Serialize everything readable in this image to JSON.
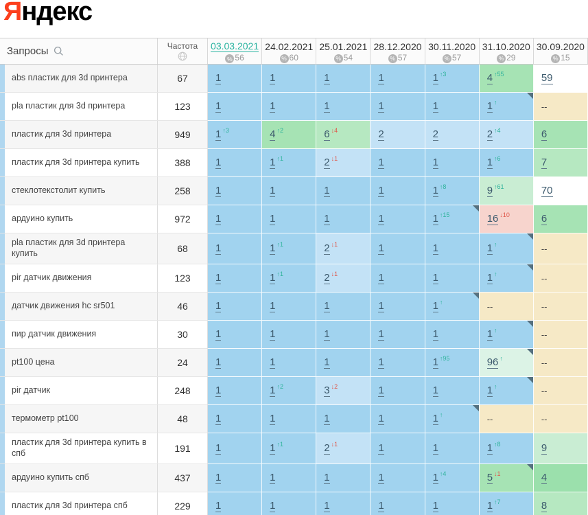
{
  "logo": {
    "first_letter": "Я",
    "rest": "ндекс"
  },
  "header": {
    "queries_label": "Запросы",
    "freq_label": "Частота",
    "columns": [
      {
        "date": "03.03.2021",
        "pct": "56",
        "active": true
      },
      {
        "date": "24.02.2021",
        "pct": "60",
        "active": false
      },
      {
        "date": "25.01.2021",
        "pct": "54",
        "active": false
      },
      {
        "date": "28.12.2020",
        "pct": "57",
        "active": false
      },
      {
        "date": "30.11.2020",
        "pct": "57",
        "active": false
      },
      {
        "date": "31.10.2020",
        "pct": "29",
        "active": false
      },
      {
        "date": "30.09.2020",
        "pct": "15",
        "active": false
      }
    ]
  },
  "colors": {
    "accent_teal": "#2ab3a0",
    "sup_up": "#2fb39b",
    "sup_down": "#e0594c",
    "logo_red": "#fc3f1d",
    "marker": "#55707f",
    "strip_blue": "#b0d7f0",
    "palette": {
      "b1": "#a1d3ef",
      "b2": "#c3e2f6",
      "g0": "#9be0ac",
      "g1": "#a6e3b4",
      "g2": "#b6e8c1",
      "g3": "#c9edd3",
      "g4": "#dcf3e6",
      "tan": "#f6e9c6",
      "pink": "#f7d4cd",
      "white": "#ffffff"
    }
  },
  "rows": [
    {
      "keyword": "abs пластик для 3d принтера",
      "freq": "67",
      "cells": [
        {
          "v": "1",
          "bg": "b1"
        },
        {
          "v": "1",
          "bg": "b1"
        },
        {
          "v": "1",
          "bg": "b1"
        },
        {
          "v": "1",
          "bg": "b1"
        },
        {
          "v": "1",
          "bg": "b1",
          "sup": "3",
          "dir": "up"
        },
        {
          "v": "4",
          "bg": "g1",
          "sup": "55",
          "dir": "up"
        },
        {
          "v": "59",
          "bg": "white"
        }
      ]
    },
    {
      "keyword": "pla пластик для 3d принтера",
      "freq": "123",
      "cells": [
        {
          "v": "1",
          "bg": "b1"
        },
        {
          "v": "1",
          "bg": "b1"
        },
        {
          "v": "1",
          "bg": "b1"
        },
        {
          "v": "1",
          "bg": "b1"
        },
        {
          "v": "1",
          "bg": "b1"
        },
        {
          "v": "1",
          "bg": "b1",
          "sup": "",
          "dir": "up",
          "marker": true
        },
        {
          "v": "--",
          "bg": "tan"
        }
      ]
    },
    {
      "keyword": "пластик для 3d принтера",
      "freq": "949",
      "cells": [
        {
          "v": "1",
          "bg": "b1",
          "sup": "3",
          "dir": "up"
        },
        {
          "v": "4",
          "bg": "g1",
          "sup": "2",
          "dir": "up"
        },
        {
          "v": "6",
          "bg": "g2",
          "sup": "4",
          "dir": "down"
        },
        {
          "v": "2",
          "bg": "b2"
        },
        {
          "v": "2",
          "bg": "b2"
        },
        {
          "v": "2",
          "bg": "b2",
          "sup": "4",
          "dir": "up"
        },
        {
          "v": "6",
          "bg": "g1"
        }
      ]
    },
    {
      "keyword": "пластик для 3d принтера купить",
      "freq": "388",
      "cells": [
        {
          "v": "1",
          "bg": "b1"
        },
        {
          "v": "1",
          "bg": "b1",
          "sup": "1",
          "dir": "up"
        },
        {
          "v": "2",
          "bg": "b2",
          "sup": "1",
          "dir": "down"
        },
        {
          "v": "1",
          "bg": "b1"
        },
        {
          "v": "1",
          "bg": "b1"
        },
        {
          "v": "1",
          "bg": "b1",
          "sup": "6",
          "dir": "up"
        },
        {
          "v": "7",
          "bg": "g2"
        }
      ]
    },
    {
      "keyword": "стеклотекстолит купить",
      "freq": "258",
      "cells": [
        {
          "v": "1",
          "bg": "b1"
        },
        {
          "v": "1",
          "bg": "b1"
        },
        {
          "v": "1",
          "bg": "b1"
        },
        {
          "v": "1",
          "bg": "b1"
        },
        {
          "v": "1",
          "bg": "b1",
          "sup": "8",
          "dir": "up"
        },
        {
          "v": "9",
          "bg": "g3",
          "sup": "61",
          "dir": "up"
        },
        {
          "v": "70",
          "bg": "white"
        }
      ]
    },
    {
      "keyword": "ардуино купить",
      "freq": "972",
      "cells": [
        {
          "v": "1",
          "bg": "b1"
        },
        {
          "v": "1",
          "bg": "b1"
        },
        {
          "v": "1",
          "bg": "b1"
        },
        {
          "v": "1",
          "bg": "b1"
        },
        {
          "v": "1",
          "bg": "b1",
          "sup": "15",
          "dir": "up",
          "marker": true
        },
        {
          "v": "16",
          "bg": "pink",
          "sup": "10",
          "dir": "down"
        },
        {
          "v": "6",
          "bg": "g1"
        }
      ]
    },
    {
      "keyword": "pla пластик для 3d принтера купить",
      "freq": "68",
      "cells": [
        {
          "v": "1",
          "bg": "b1"
        },
        {
          "v": "1",
          "bg": "b1",
          "sup": "1",
          "dir": "up"
        },
        {
          "v": "2",
          "bg": "b2",
          "sup": "1",
          "dir": "down"
        },
        {
          "v": "1",
          "bg": "b1"
        },
        {
          "v": "1",
          "bg": "b1"
        },
        {
          "v": "1",
          "bg": "b1",
          "sup": "",
          "dir": "up",
          "marker": true
        },
        {
          "v": "--",
          "bg": "tan"
        }
      ]
    },
    {
      "keyword": "pir датчик движения",
      "freq": "123",
      "cells": [
        {
          "v": "1",
          "bg": "b1"
        },
        {
          "v": "1",
          "bg": "b1",
          "sup": "1",
          "dir": "up"
        },
        {
          "v": "2",
          "bg": "b2",
          "sup": "1",
          "dir": "down"
        },
        {
          "v": "1",
          "bg": "b1"
        },
        {
          "v": "1",
          "bg": "b1"
        },
        {
          "v": "1",
          "bg": "b1",
          "sup": "",
          "dir": "up",
          "marker": true
        },
        {
          "v": "--",
          "bg": "tan"
        }
      ]
    },
    {
      "keyword": "датчик движения hc sr501",
      "freq": "46",
      "cells": [
        {
          "v": "1",
          "bg": "b1"
        },
        {
          "v": "1",
          "bg": "b1"
        },
        {
          "v": "1",
          "bg": "b1"
        },
        {
          "v": "1",
          "bg": "b1"
        },
        {
          "v": "1",
          "bg": "b1",
          "sup": "",
          "dir": "up",
          "marker": true
        },
        {
          "v": "--",
          "bg": "tan"
        },
        {
          "v": "--",
          "bg": "tan"
        }
      ]
    },
    {
      "keyword": "пир датчик движения",
      "freq": "30",
      "cells": [
        {
          "v": "1",
          "bg": "b1"
        },
        {
          "v": "1",
          "bg": "b1"
        },
        {
          "v": "1",
          "bg": "b1"
        },
        {
          "v": "1",
          "bg": "b1"
        },
        {
          "v": "1",
          "bg": "b1"
        },
        {
          "v": "1",
          "bg": "b1",
          "sup": "",
          "dir": "up",
          "marker": true
        },
        {
          "v": "--",
          "bg": "tan"
        }
      ]
    },
    {
      "keyword": "pt100 цена",
      "freq": "24",
      "cells": [
        {
          "v": "1",
          "bg": "b1"
        },
        {
          "v": "1",
          "bg": "b1"
        },
        {
          "v": "1",
          "bg": "b1"
        },
        {
          "v": "1",
          "bg": "b1"
        },
        {
          "v": "1",
          "bg": "b1",
          "sup": "95",
          "dir": "up"
        },
        {
          "v": "96",
          "bg": "g4",
          "sup": "",
          "dir": "up",
          "marker": true
        },
        {
          "v": "--",
          "bg": "tan"
        }
      ]
    },
    {
      "keyword": "pir датчик",
      "freq": "248",
      "cells": [
        {
          "v": "1",
          "bg": "b1"
        },
        {
          "v": "1",
          "bg": "b1",
          "sup": "2",
          "dir": "up"
        },
        {
          "v": "3",
          "bg": "b2",
          "sup": "2",
          "dir": "down"
        },
        {
          "v": "1",
          "bg": "b1"
        },
        {
          "v": "1",
          "bg": "b1"
        },
        {
          "v": "1",
          "bg": "b1",
          "sup": "",
          "dir": "up",
          "marker": true
        },
        {
          "v": "--",
          "bg": "tan"
        }
      ]
    },
    {
      "keyword": "термометр pt100",
      "freq": "48",
      "cells": [
        {
          "v": "1",
          "bg": "b1"
        },
        {
          "v": "1",
          "bg": "b1"
        },
        {
          "v": "1",
          "bg": "b1"
        },
        {
          "v": "1",
          "bg": "b1"
        },
        {
          "v": "1",
          "bg": "b1",
          "sup": "",
          "dir": "up",
          "marker": true
        },
        {
          "v": "--",
          "bg": "tan"
        },
        {
          "v": "--",
          "bg": "tan"
        }
      ]
    },
    {
      "keyword": "пластик для 3d принтера купить в спб",
      "freq": "191",
      "cells": [
        {
          "v": "1",
          "bg": "b1"
        },
        {
          "v": "1",
          "bg": "b1",
          "sup": "1",
          "dir": "up"
        },
        {
          "v": "2",
          "bg": "b2",
          "sup": "1",
          "dir": "down"
        },
        {
          "v": "1",
          "bg": "b1"
        },
        {
          "v": "1",
          "bg": "b1"
        },
        {
          "v": "1",
          "bg": "b1",
          "sup": "8",
          "dir": "up"
        },
        {
          "v": "9",
          "bg": "g3"
        }
      ]
    },
    {
      "keyword": "ардуино купить спб",
      "freq": "437",
      "cells": [
        {
          "v": "1",
          "bg": "b1"
        },
        {
          "v": "1",
          "bg": "b1"
        },
        {
          "v": "1",
          "bg": "b1"
        },
        {
          "v": "1",
          "bg": "b1"
        },
        {
          "v": "1",
          "bg": "b1",
          "sup": "4",
          "dir": "up"
        },
        {
          "v": "5",
          "bg": "g1",
          "sup": "1",
          "dir": "down",
          "marker": true
        },
        {
          "v": "4",
          "bg": "g0"
        }
      ]
    },
    {
      "keyword": "пластик для 3d принтера спб",
      "freq": "229",
      "cells": [
        {
          "v": "1",
          "bg": "b1"
        },
        {
          "v": "1",
          "bg": "b1"
        },
        {
          "v": "1",
          "bg": "b1"
        },
        {
          "v": "1",
          "bg": "b1"
        },
        {
          "v": "1",
          "bg": "b1"
        },
        {
          "v": "1",
          "bg": "b1",
          "sup": "7",
          "dir": "up"
        },
        {
          "v": "8",
          "bg": "g2"
        }
      ]
    }
  ]
}
